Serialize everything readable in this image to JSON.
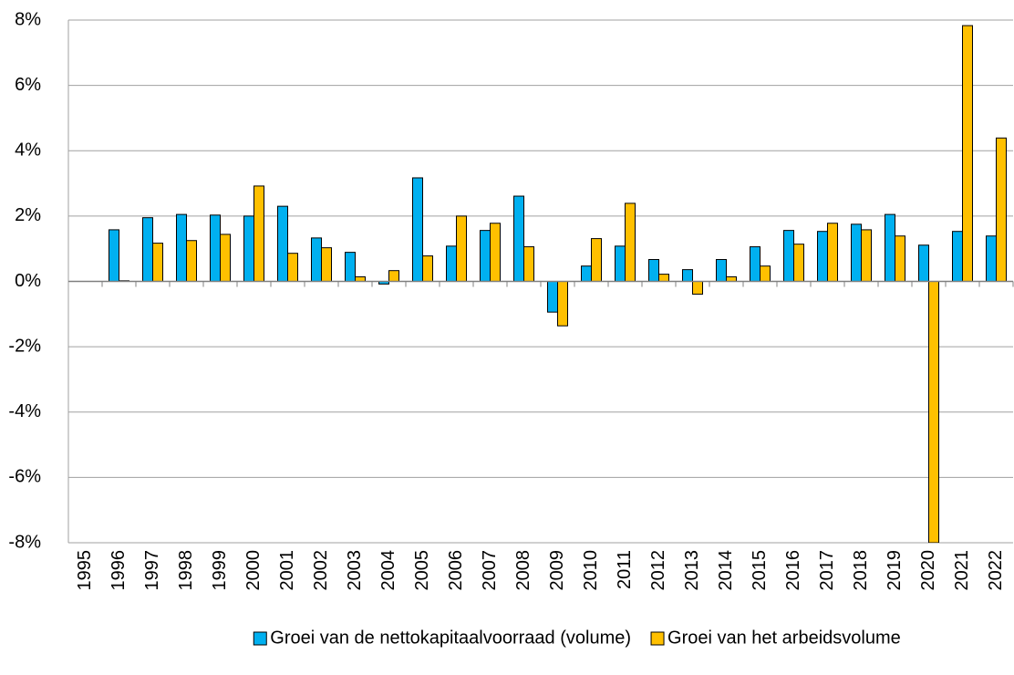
{
  "chart_data": {
    "type": "bar",
    "categories": [
      "1995",
      "1996",
      "1997",
      "1998",
      "1999",
      "2000",
      "2001",
      "2002",
      "2003",
      "2004",
      "2005",
      "2006",
      "2007",
      "2008",
      "2009",
      "2010",
      "2011",
      "2012",
      "2013",
      "2014",
      "2015",
      "2016",
      "2017",
      "2018",
      "2019",
      "2020",
      "2021",
      "2022"
    ],
    "series": [
      {
        "name": "Groei van de nettokapitaalvoorraad (volume)",
        "color": "#00b0f0",
        "values": [
          null,
          1.58,
          1.95,
          2.05,
          2.03,
          2.0,
          2.3,
          1.33,
          0.89,
          -0.08,
          3.17,
          1.08,
          1.56,
          2.61,
          -0.94,
          0.47,
          1.08,
          0.67,
          0.36,
          0.67,
          1.06,
          1.56,
          1.53,
          1.75,
          2.05,
          1.11,
          1.53,
          1.39
        ]
      },
      {
        "name": "Groei van het arbeidsvolume",
        "color": "#ffc000",
        "values": [
          null,
          0.02,
          1.17,
          1.25,
          1.44,
          2.92,
          0.86,
          1.03,
          0.14,
          0.33,
          0.78,
          2.0,
          1.78,
          1.06,
          -1.36,
          1.31,
          2.39,
          0.22,
          -0.39,
          0.14,
          0.47,
          1.14,
          1.78,
          1.58,
          1.39,
          -8,
          7.83,
          4.39
        ]
      }
    ],
    "ylim": [
      -8,
      8
    ],
    "yticks": [
      {
        "value": -8,
        "label": "-8%"
      },
      {
        "value": -6,
        "label": "-6%"
      },
      {
        "value": -4,
        "label": "-4%"
      },
      {
        "value": -2,
        "label": "-2%"
      },
      {
        "value": 0,
        "label": "0%"
      },
      {
        "value": 2,
        "label": "2%"
      },
      {
        "value": 4,
        "label": "4%"
      },
      {
        "value": 6,
        "label": "6%"
      },
      {
        "value": 8,
        "label": "8%"
      }
    ],
    "grid": true,
    "legend": "bottom"
  }
}
